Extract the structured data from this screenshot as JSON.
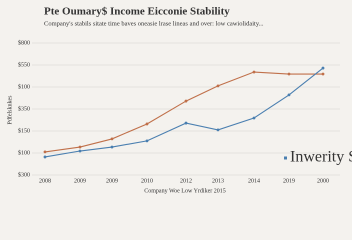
{
  "chart_data": {
    "type": "line",
    "title": "Pte Oumary$ Income Eicconie Stability",
    "subtitle": "Company's stabils sitate time baves oneasie lrase lineas and over: low cawiolidaity...",
    "y_label": "Pdfelsknkes",
    "x_label": "Company Woe Low Yrdiker 2015",
    "categories": [
      "2008",
      "2009",
      "2009",
      "2010",
      "2012",
      "2013",
      "2014",
      "2019",
      "2000"
    ],
    "series": [
      {
        "color": "#c0704a",
        "values": [
          1.05,
          1.27,
          1.64,
          2.32,
          3.36,
          4.05,
          4.68,
          4.59,
          4.59
        ]
      },
      {
        "name": "Inwerity Spetre",
        "color": "#4a7fb0",
        "values": [
          0.82,
          1.09,
          1.27,
          1.55,
          2.36,
          2.05,
          2.59,
          3.64,
          4.86
        ]
      }
    ],
    "ylim": [
      0,
      6
    ],
    "yticks": [
      {
        "value": 0,
        "label": "$300"
      },
      {
        "value": 1,
        "label": "$100"
      },
      {
        "value": 2,
        "label": "$150"
      },
      {
        "value": 3,
        "label": "$350"
      },
      {
        "value": 4,
        "label": "$100"
      },
      {
        "value": 5,
        "label": "$550"
      },
      {
        "value": 6,
        "label": "$800"
      }
    ],
    "grid": true,
    "legend": "lower right"
  }
}
